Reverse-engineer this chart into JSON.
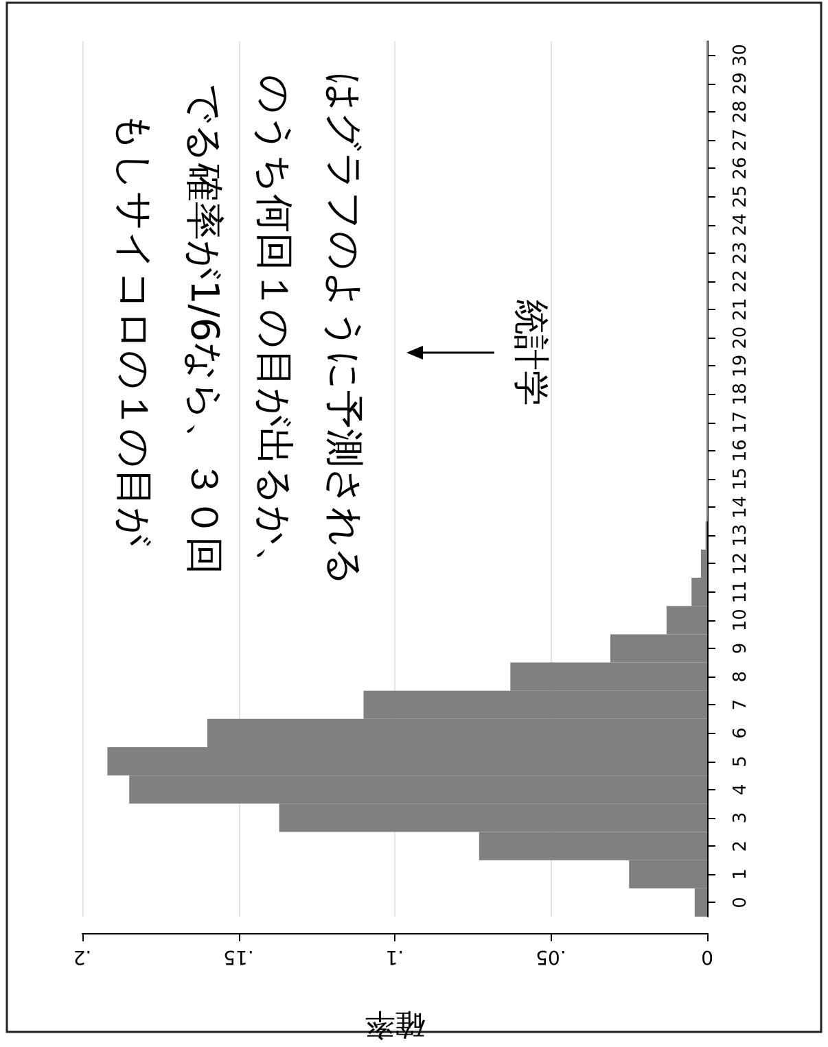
{
  "chart_data": {
    "type": "bar",
    "orientation": "horizontal",
    "xlabel": "確率",
    "categories": [
      "30",
      "29",
      "28",
      "27",
      "26",
      "25",
      "24",
      "23",
      "22",
      "21",
      "20",
      "19",
      "18",
      "17",
      "16",
      "15",
      "14",
      "13",
      "12",
      "11",
      "10",
      "9",
      "8",
      "7",
      "6",
      "5",
      "4",
      "3",
      "2",
      "1",
      "0"
    ],
    "values": [
      0,
      0,
      0,
      0,
      0,
      0,
      0,
      0,
      0,
      0,
      0,
      0,
      0,
      0,
      0,
      0,
      0,
      0.0005,
      0.002,
      0.005,
      0.013,
      0.031,
      0.063,
      0.11,
      0.16,
      0.192,
      0.185,
      0.137,
      0.073,
      0.025,
      0.004
    ],
    "color": "#808080",
    "xlim": [
      0.2,
      0
    ],
    "xticks": [
      0,
      {
        "value": 0.05,
        "label": ".05"
      },
      {
        "value": 0.1,
        "label": ".1"
      },
      {
        "value": 0.15,
        "label": ".15"
      },
      {
        "value": 0.2,
        "label": ".2"
      }
    ],
    "grid": "x",
    "annotations": [
      {
        "text": "もしサイコロの１の目が"
      },
      {
        "text": "でる確率が1/6なら、３０回"
      },
      {
        "text": "のうち何回１の目が出るか、"
      },
      {
        "text": "はグラフのように予測される"
      },
      "統計学"
    ]
  }
}
